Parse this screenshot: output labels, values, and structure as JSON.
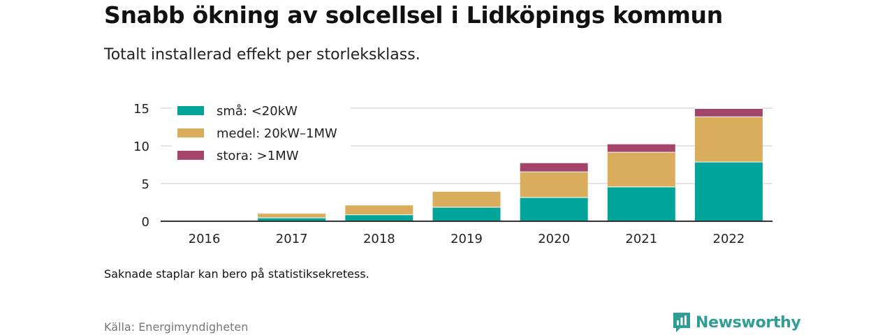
{
  "title": "Snabb ökning av solcellsel i Lidköpings kommun",
  "subtitle": "Totalt installerad effekt per storleksklass.",
  "note": "Saknade staplar kan bero på statistiksekretess.",
  "source": "Källa: Energimyndigheten",
  "brand": {
    "name": "Newsworthy",
    "icon": "newsworthy-logo-icon",
    "color": "#2f9f96"
  },
  "chart_data": {
    "type": "bar",
    "stacked": true,
    "categories": [
      "2016",
      "2017",
      "2018",
      "2019",
      "2020",
      "2021",
      "2022"
    ],
    "series": [
      {
        "name": "små: <20kW",
        "color": "#00a498",
        "values": [
          0.1,
          0.5,
          0.9,
          1.9,
          3.2,
          4.6,
          7.9
        ]
      },
      {
        "name": "medel: 20kW–1MW",
        "color": "#d9ad5b",
        "values": [
          0.0,
          0.6,
          1.3,
          2.1,
          3.4,
          4.6,
          6.0
        ]
      },
      {
        "name": "stora: >1MW",
        "color": "#a5446b",
        "values": [
          0.0,
          0.0,
          0.0,
          0.0,
          1.2,
          1.1,
          1.1
        ]
      }
    ],
    "yticks": [
      0,
      5,
      10,
      15
    ],
    "ylim": [
      0,
      16
    ],
    "grid": true,
    "legend": "top-left"
  }
}
